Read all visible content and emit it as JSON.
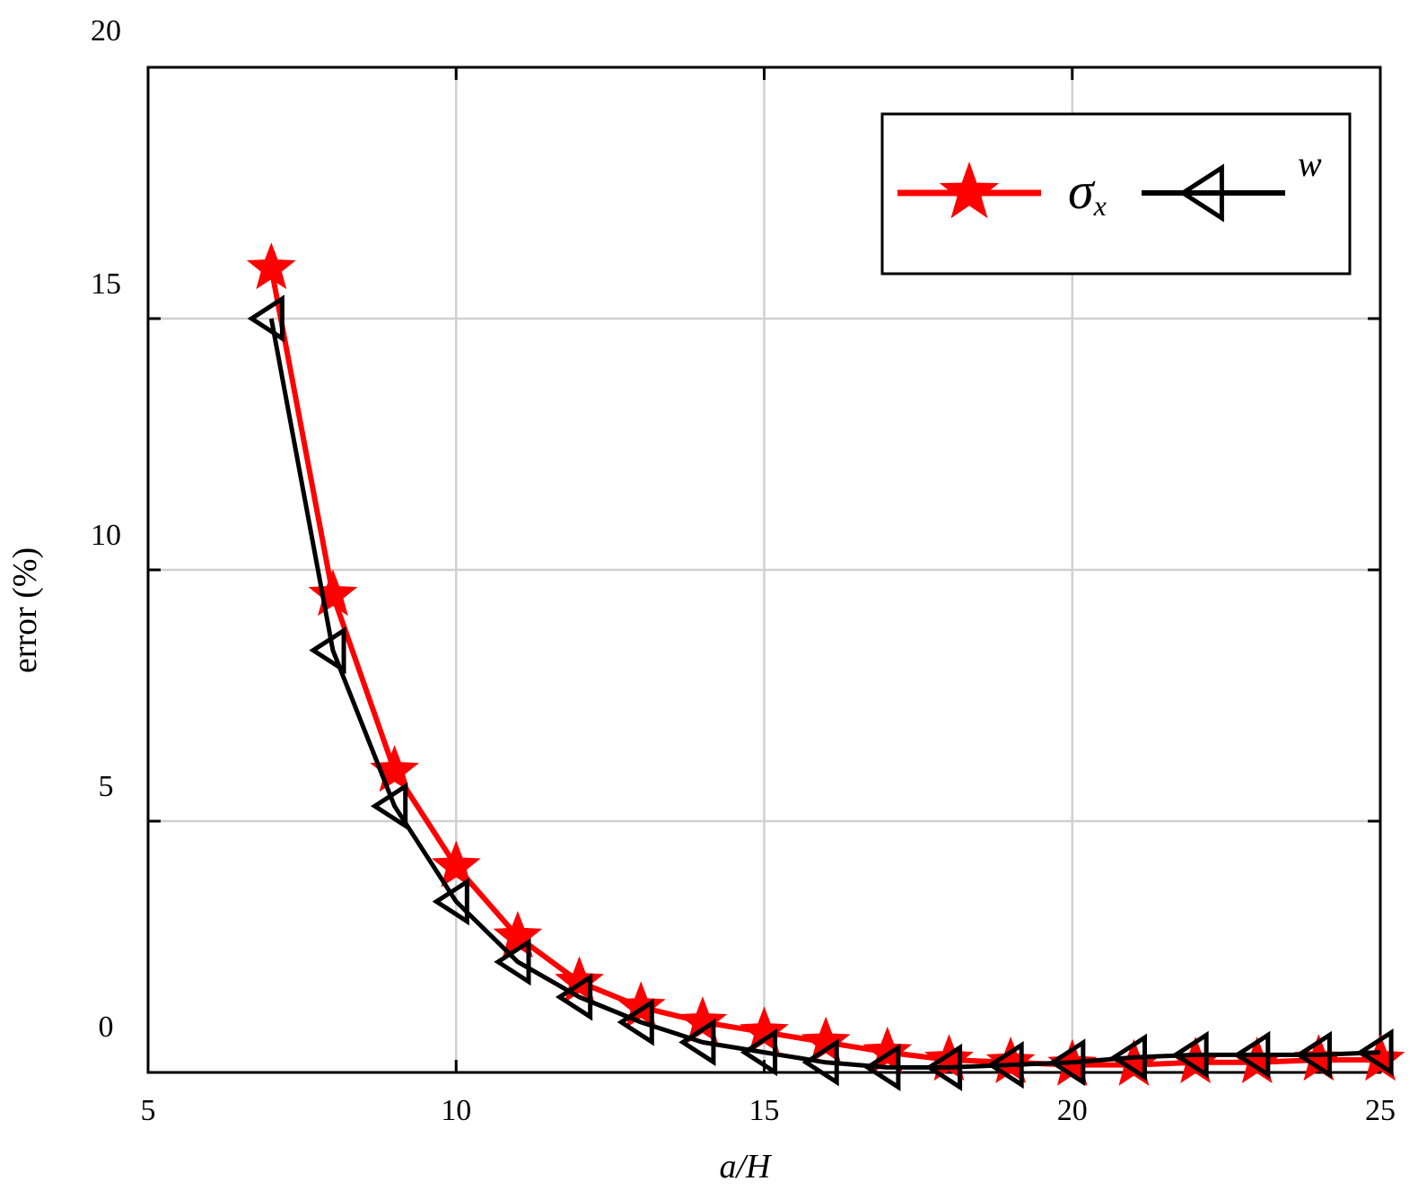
{
  "chart_data": {
    "type": "line",
    "xlabel": "a/H",
    "ylabel": "error (%)",
    "xlim": [
      5,
      25
    ],
    "ylim": [
      0,
      20
    ],
    "x_ticks": [
      "5",
      "10",
      "15",
      "20",
      "25"
    ],
    "y_ticks": [
      "0",
      "5",
      "10",
      "15",
      "20"
    ],
    "grid": true,
    "legend_position": "top-right",
    "x": [
      7,
      8,
      9,
      10,
      11,
      12,
      13,
      14,
      15,
      16,
      17,
      18,
      19,
      20,
      21,
      22,
      23,
      24,
      25
    ],
    "series": [
      {
        "name": "σx",
        "name_main": "σ",
        "name_sub": "x",
        "color": "#ff0000",
        "marker": "star",
        "values": [
          16.0,
          9.5,
          6.0,
          4.1,
          2.7,
          1.8,
          1.3,
          1.0,
          0.8,
          0.6,
          0.4,
          0.25,
          0.2,
          0.15,
          0.15,
          0.2,
          0.2,
          0.25,
          0.25
        ]
      },
      {
        "name": "w",
        "color": "#000000",
        "marker": "triangle-left",
        "values": [
          15.0,
          8.4,
          5.3,
          3.4,
          2.2,
          1.5,
          1.0,
          0.6,
          0.4,
          0.2,
          0.1,
          0.1,
          0.15,
          0.2,
          0.3,
          0.35,
          0.35,
          0.35,
          0.4
        ]
      }
    ]
  }
}
